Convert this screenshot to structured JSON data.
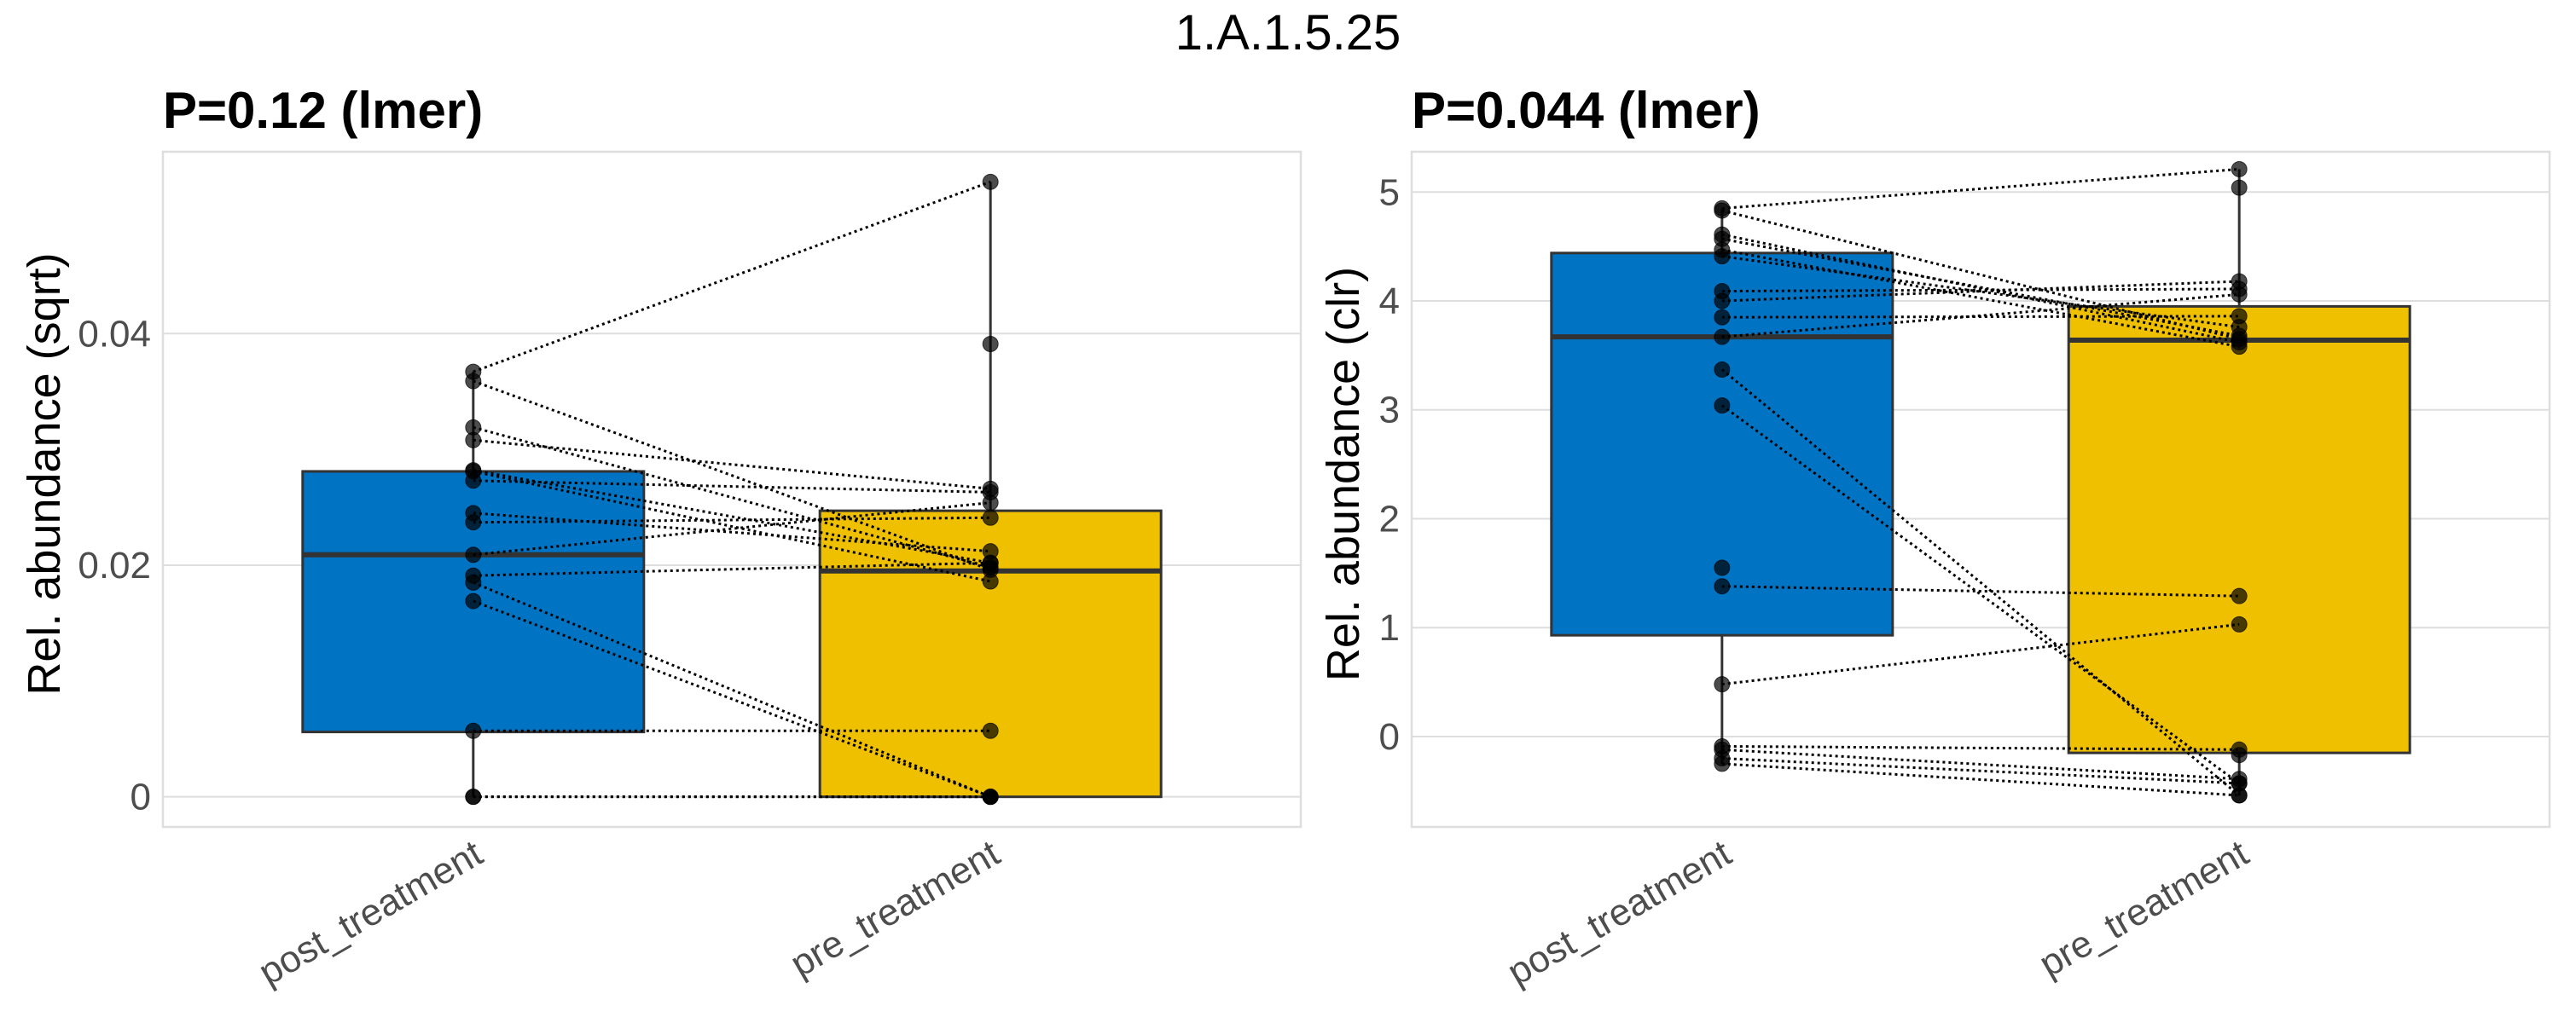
{
  "figure": {
    "title": "1.A.1.5.25"
  },
  "chart_data": [
    {
      "type": "box",
      "title": "P=0.12 (lmer)",
      "xlabel": "",
      "ylabel": "Rel. abundance (sqrt)",
      "categories": [
        "post_treatment",
        "pre_treatment"
      ],
      "colors": [
        "#0073C2",
        "#EFC000"
      ],
      "ylim": [
        -0.0026,
        0.0557
      ],
      "yticks": [
        0,
        0.02,
        0.04
      ],
      "ytick_labels": [
        "0",
        "0.02",
        "0.04"
      ],
      "grid": true,
      "boxes": [
        {
          "category": "post_treatment",
          "lower_whisker": 0,
          "q1": 0.0056,
          "median": 0.0209,
          "q3": 0.0281,
          "upper_whisker": 0.0367
        },
        {
          "category": "pre_treatment",
          "lower_whisker": 0,
          "q1": 0,
          "median": 0.0195,
          "q3": 0.0247,
          "upper_whisker": 0.0531
        }
      ],
      "pairs": [
        [
          0.0367,
          0.0531
        ],
        [
          0.0359,
          0.0196
        ],
        [
          0.0319,
          0.0198
        ],
        [
          0.0308,
          0.0266
        ],
        [
          0.0282,
          0.0202
        ],
        [
          0.0281,
          0.0186
        ],
        [
          0.0273,
          0.0263
        ],
        [
          0.0245,
          0.0212
        ],
        [
          0.0237,
          0.0241
        ],
        [
          0.0209,
          0.0254
        ],
        [
          0.0191,
          0.0202
        ],
        [
          0.0185,
          0
        ],
        [
          0.0169,
          0
        ],
        [
          0.0057,
          0.0057
        ],
        [
          0,
          0
        ],
        [
          0,
          0
        ]
      ],
      "unpaired_points": [
        {
          "category": "pre_treatment",
          "value": 0.0391
        }
      ]
    },
    {
      "type": "box",
      "title": "P=0.044 (lmer)",
      "xlabel": "",
      "ylabel": "Rel. abundance (clr)",
      "categories": [
        "post_treatment",
        "pre_treatment"
      ],
      "colors": [
        "#0073C2",
        "#EFC000"
      ],
      "ylim": [
        -0.83,
        5.37
      ],
      "yticks": [
        0,
        1,
        2,
        3,
        4,
        5
      ],
      "ytick_labels": [
        "0",
        "1",
        "2",
        "3",
        "4",
        "5"
      ],
      "grid": true,
      "boxes": [
        {
          "category": "post_treatment",
          "lower_whisker": -0.25,
          "q1": 0.93,
          "median": 3.67,
          "q3": 4.44,
          "upper_whisker": 4.85
        },
        {
          "category": "pre_treatment",
          "lower_whisker": -0.54,
          "q1": -0.15,
          "median": 3.64,
          "q3": 3.95,
          "upper_whisker": 5.21
        }
      ],
      "pairs": [
        [
          4.85,
          5.21
        ],
        [
          4.83,
          3.65
        ],
        [
          4.61,
          3.62
        ],
        [
          4.57,
          3.68
        ],
        [
          4.47,
          3.58
        ],
        [
          4.41,
          3.76
        ],
        [
          4.09,
          4.11
        ],
        [
          4.0,
          4.18
        ],
        [
          3.85,
          3.86
        ],
        [
          3.67,
          4.06
        ],
        [
          3.37,
          -0.54
        ],
        [
          3.04,
          -0.43
        ],
        [
          1.38,
          1.29
        ],
        [
          0.48,
          1.03
        ],
        [
          -0.09,
          -0.12
        ],
        [
          -0.12,
          -0.39
        ],
        [
          -0.2,
          -0.43
        ],
        [
          -0.25,
          -0.54
        ]
      ],
      "unpaired_points": [
        {
          "category": "post_treatment",
          "value": 1.55
        },
        {
          "category": "pre_treatment",
          "value": 5.04
        },
        {
          "category": "pre_treatment",
          "value": -0.17
        }
      ]
    }
  ]
}
